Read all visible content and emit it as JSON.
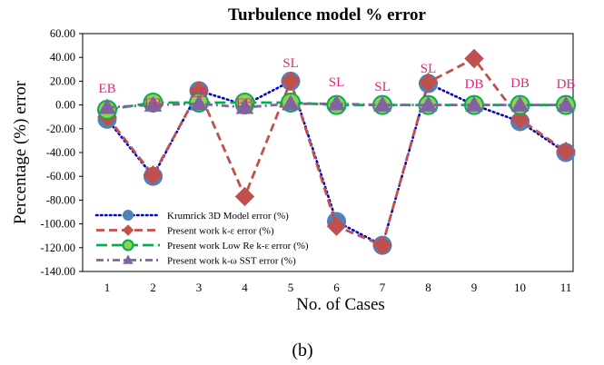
{
  "caption": "(b)",
  "chart_data": {
    "type": "line",
    "title": "Turbulence model % error",
    "xlabel": "No. of Cases",
    "ylabel": "Percentage (%)  error",
    "x": [
      1,
      2,
      3,
      4,
      5,
      6,
      7,
      8,
      9,
      10,
      11
    ],
    "ylim": [
      -140,
      60
    ],
    "y_ticks": [
      "60.00",
      "40.00",
      "20.00",
      "0.00",
      "-20.00",
      "-40.00",
      "-60.00",
      "-80.00",
      "-100.00",
      "-120.00",
      "-140.00"
    ],
    "x_ticks": [
      "1",
      "2",
      "3",
      "4",
      "5",
      "6",
      "7",
      "8",
      "9",
      "10",
      "11"
    ],
    "grid": false,
    "legend_position": "bottom-left",
    "category_labels": [
      "EB",
      "EB",
      "EB",
      "EB",
      "SL",
      "SL",
      "SL",
      "SL",
      "DB",
      "DB",
      "DB"
    ],
    "category_label_color": "#e0287a",
    "series": [
      {
        "name": "Krumrick 3D Model error (%)",
        "values": [
          -12,
          -60,
          12,
          0,
          20,
          -98,
          -118,
          18,
          0,
          -14,
          -40
        ],
        "color": "#0000cc",
        "marker_color": "#4f81bd",
        "marker": "circle",
        "line_style": "dotted"
      },
      {
        "name": "Present work k-ε error (%)",
        "values": [
          -10,
          -59,
          12,
          -77,
          20,
          -102,
          -118,
          19,
          39,
          -12,
          -39
        ],
        "color": "#c0504d",
        "marker_color": "#c0504d",
        "marker": "diamond",
        "line_style": "dashed"
      },
      {
        "name": "Present work Low Re k-ε error (%)",
        "values": [
          -4,
          2,
          2,
          2,
          2,
          0,
          0,
          0,
          0,
          0,
          0
        ],
        "color": "#00b050",
        "marker_color": "#92d050",
        "marker": "circle",
        "line_style": "long-dash"
      },
      {
        "name": "Present work  k-ω SST error (%)",
        "values": [
          -2,
          0,
          1,
          -2,
          1,
          1,
          0,
          0,
          0,
          0,
          0
        ],
        "color": "#8064a2",
        "marker_color": "#8064a2",
        "marker": "triangle",
        "line_style": "dash-dot"
      }
    ]
  }
}
